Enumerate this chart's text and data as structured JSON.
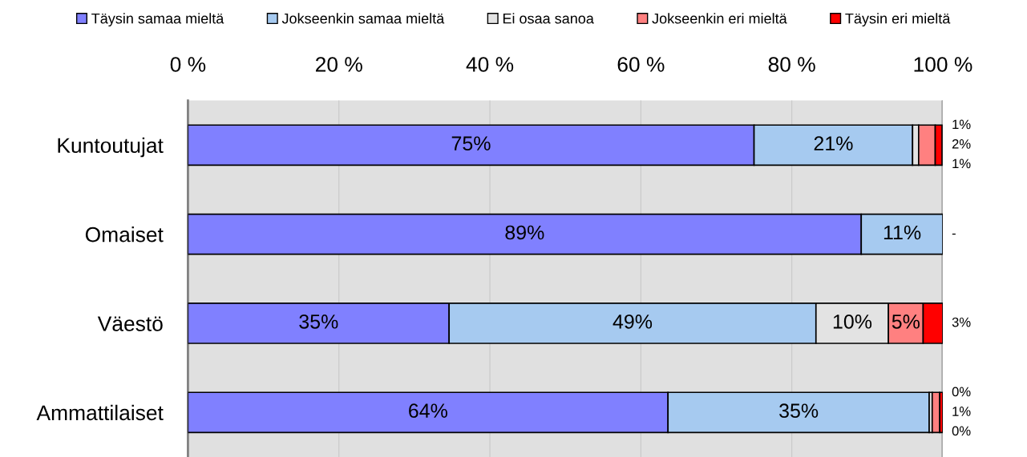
{
  "chart_data": {
    "type": "bar",
    "orientation": "horizontal",
    "stacked": true,
    "categories": [
      "Kuntoutujat",
      "Omaiset",
      "Väestö",
      "Ammattilaiset"
    ],
    "series": [
      {
        "name": "Täysin samaa mieltä",
        "color": "#8080ff",
        "values": [
          75,
          89.2,
          34.6,
          63.6
        ],
        "value_labels": [
          "75%",
          "89%",
          "35%",
          "64%"
        ]
      },
      {
        "name": "Jokseenkin samaa mieltä",
        "color": "#a6caf0",
        "values": [
          21,
          10.8,
          48.6,
          34.6
        ],
        "value_labels": [
          "21%",
          "11%",
          "49%",
          "35%"
        ]
      },
      {
        "name": "Ei osaa sanoa",
        "color": "#e3e3e3",
        "values": [
          0.8,
          0,
          9.6,
          0.4
        ],
        "value_labels": [
          "1%",
          null,
          "10%",
          "0%"
        ]
      },
      {
        "name": "Jokseenkin eri mieltä",
        "color": "#ff8080",
        "values": [
          2.2,
          0,
          4.6,
          1.0
        ],
        "value_labels": [
          "2%",
          null,
          "5%",
          "1%"
        ]
      },
      {
        "name": "Täysin eri mieltä",
        "color": "#ff0000",
        "values": [
          0.9,
          0,
          2.6,
          0.4
        ],
        "value_labels": [
          "1%",
          "-",
          "3%",
          "0%"
        ]
      }
    ],
    "xlim": [
      0,
      100
    ],
    "xticks": [
      {
        "value": 0,
        "label": "0 %"
      },
      {
        "value": 20,
        "label": "20 %"
      },
      {
        "value": 40,
        "label": "40 %"
      },
      {
        "value": 60,
        "label": "60 %"
      },
      {
        "value": 80,
        "label": "80 %"
      },
      {
        "value": 100,
        "label": "100 %"
      }
    ],
    "grid": "x",
    "legend": "top"
  }
}
